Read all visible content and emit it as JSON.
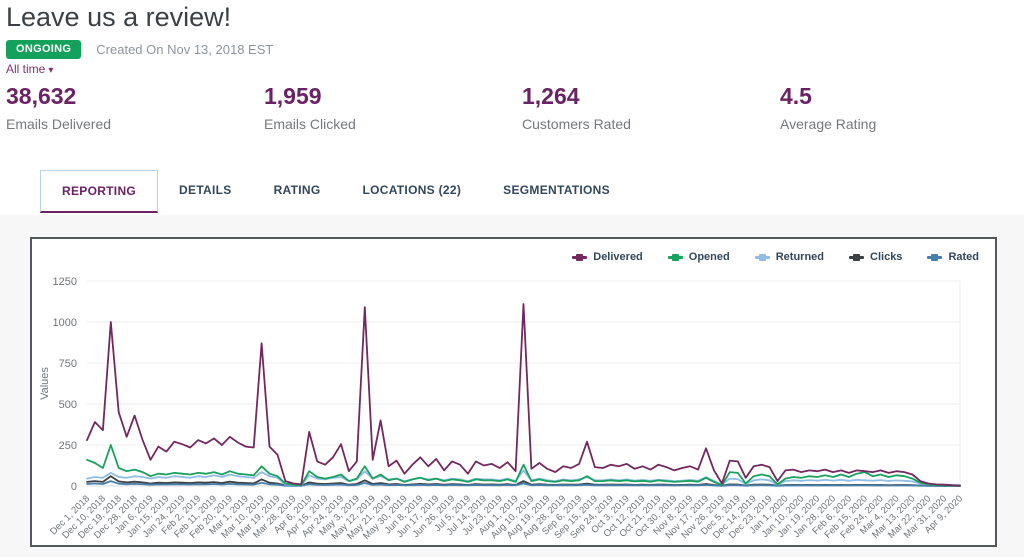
{
  "page": {
    "title": "Leave us a review!",
    "status_badge": "ONGOING",
    "created_text": "Created On Nov 13, 2018 EST",
    "time_filter": "All time",
    "caret": "▾"
  },
  "colors": {
    "accent_purple": "#6b2264",
    "badge_green": "#13a15b",
    "tab_inactive": "#33475b",
    "active_tab_border": "#b6d3ec",
    "panel_bg": "#f7f7f8",
    "card_border": "#54575c",
    "gridline": "#ededed",
    "baseline": "#d7dde2",
    "axis_text": "#70757a"
  },
  "stats": [
    {
      "value": "38,632",
      "label": "Emails Delivered"
    },
    {
      "value": "1,959",
      "label": "Emails Clicked"
    },
    {
      "value": "1,264",
      "label": "Customers Rated"
    },
    {
      "value": "4.5",
      "label": "Average Rating"
    }
  ],
  "tabs": [
    {
      "label": "REPORTING",
      "active": true
    },
    {
      "label": "DETAILS",
      "active": false
    },
    {
      "label": "RATING",
      "active": false
    },
    {
      "label": "LOCATIONS (22)",
      "active": false
    },
    {
      "label": "SEGMENTATIONS",
      "active": false
    }
  ],
  "chart_data": {
    "type": "line",
    "ylabel": "Values",
    "ylim": [
      0,
      1250
    ],
    "yticks": [
      0,
      250,
      500,
      750,
      1000,
      1250
    ],
    "ytick_labels": [
      "0",
      "250",
      "500",
      "750",
      "1000",
      "1250"
    ],
    "grid": true,
    "legend_position": "top-right",
    "x_tick_labels": [
      "Dec 1, 2018",
      "Dec 10, 2018",
      "Dec 19, 2018",
      "Dec 28, 2018",
      "Jan 6, 2019",
      "Jan 15, 2019",
      "Jan 24, 2019",
      "Feb 2, 2019",
      "Feb 11, 2019",
      "Feb 20, 2019",
      "Mar 1, 2019",
      "Mar 10, 2019",
      "Mar 19, 2019",
      "Mar 28, 2019",
      "Apr 6, 2019",
      "Apr 15, 2019",
      "Apr 24, 2019",
      "May 3, 2019",
      "May 12, 2019",
      "May 21, 2019",
      "May 30, 2019",
      "Jun 8, 2019",
      "Jun 17, 2019",
      "Jun 26, 2019",
      "Jul 5, 2019",
      "Jul 14, 2019",
      "Jul 23, 2019",
      "Aug 1, 2019",
      "Aug 10, 2019",
      "Aug 19, 2019",
      "Aug 28, 2019",
      "Sep 6, 2019",
      "Sep 15, 2019",
      "Sep 24, 2019",
      "Oct 3, 2019",
      "Oct 12, 2019",
      "Oct 21, 2019",
      "Oct 30, 2019",
      "Nov 8, 2019",
      "Nov 17, 2019",
      "Nov 26, 2019",
      "Dec 5, 2019",
      "Dec 14, 2019",
      "Dec 23, 2019",
      "Jan 1, 2020",
      "Jan 10, 2020",
      "Jan 19, 2020",
      "Jan 28, 2020",
      "Feb 6, 2020",
      "Feb 15, 2020",
      "Feb 24, 2020",
      "Mar 4, 2020",
      "Mar 13, 2020",
      "Mar 22, 2020",
      "Mar 31, 2020",
      "Apr 9, 2020"
    ],
    "points_per_label_interval": 2,
    "series": [
      {
        "name": "Delivered",
        "color": "#73295f",
        "values": [
          280,
          390,
          340,
          1000,
          450,
          300,
          430,
          280,
          160,
          240,
          210,
          270,
          255,
          235,
          280,
          260,
          290,
          250,
          300,
          265,
          240,
          235,
          870,
          240,
          190,
          30,
          15,
          10,
          330,
          150,
          130,
          175,
          255,
          90,
          150,
          1090,
          160,
          400,
          120,
          155,
          75,
          130,
          175,
          120,
          165,
          95,
          150,
          130,
          75,
          150,
          125,
          135,
          110,
          145,
          90,
          1110,
          105,
          140,
          105,
          85,
          120,
          110,
          135,
          270,
          115,
          110,
          130,
          120,
          135,
          105,
          120,
          100,
          130,
          115,
          95,
          110,
          120,
          100,
          230,
          95,
          15,
          155,
          150,
          50,
          120,
          130,
          115,
          30,
          95,
          100,
          85,
          95,
          90,
          100,
          85,
          95,
          80,
          95,
          90,
          85,
          95,
          80,
          90,
          85,
          70,
          30,
          15,
          10,
          8,
          5,
          3
        ]
      },
      {
        "name": "Opened",
        "color": "#19a15e",
        "values": [
          160,
          140,
          110,
          250,
          110,
          90,
          100,
          85,
          60,
          75,
          70,
          80,
          75,
          70,
          80,
          75,
          85,
          70,
          90,
          75,
          70,
          65,
          120,
          75,
          60,
          15,
          8,
          5,
          90,
          55,
          45,
          55,
          70,
          30,
          45,
          120,
          45,
          70,
          35,
          45,
          25,
          40,
          50,
          35,
          45,
          30,
          40,
          35,
          25,
          40,
          35,
          35,
          30,
          40,
          25,
          130,
          30,
          40,
          30,
          25,
          35,
          30,
          35,
          60,
          30,
          30,
          35,
          30,
          35,
          28,
          32,
          26,
          34,
          30,
          25,
          28,
          32,
          26,
          50,
          25,
          5,
          85,
          80,
          15,
          60,
          70,
          60,
          10,
          45,
          55,
          50,
          60,
          55,
          65,
          55,
          70,
          55,
          75,
          85,
          60,
          70,
          55,
          65,
          60,
          45,
          20,
          10,
          6,
          4,
          3,
          2
        ]
      },
      {
        "name": "Returned",
        "color": "#8fbde6",
        "values": [
          45,
          55,
          50,
          80,
          55,
          50,
          60,
          55,
          45,
          55,
          50,
          60,
          55,
          50,
          60,
          55,
          65,
          55,
          70,
          60,
          55,
          50,
          85,
          60,
          50,
          10,
          5,
          4,
          65,
          45,
          40,
          50,
          55,
          30,
          40,
          90,
          45,
          60,
          40,
          45,
          30,
          40,
          50,
          40,
          45,
          35,
          45,
          40,
          30,
          45,
          40,
          40,
          35,
          45,
          30,
          95,
          35,
          45,
          35,
          30,
          40,
          35,
          40,
          55,
          35,
          35,
          40,
          35,
          40,
          33,
          37,
          32,
          38,
          35,
          30,
          33,
          37,
          32,
          55,
          30,
          8,
          45,
          42,
          12,
          35,
          40,
          35,
          8,
          30,
          35,
          32,
          36,
          33,
          38,
          33,
          38,
          32,
          38,
          35,
          33,
          36,
          31,
          34,
          32,
          28,
          15,
          10,
          8,
          6,
          5,
          4
        ]
      },
      {
        "name": "Clicks",
        "color": "#3c4043",
        "values": [
          25,
          30,
          25,
          60,
          28,
          22,
          26,
          22,
          15,
          20,
          18,
          22,
          20,
          18,
          22,
          20,
          24,
          18,
          26,
          20,
          18,
          16,
          40,
          20,
          15,
          4,
          2,
          2,
          22,
          14,
          12,
          15,
          18,
          8,
          12,
          35,
          12,
          18,
          10,
          12,
          7,
          10,
          13,
          10,
          12,
          8,
          11,
          10,
          7,
          11,
          9,
          10,
          8,
          11,
          7,
          30,
          8,
          11,
          8,
          7,
          9,
          8,
          9,
          14,
          8,
          8,
          9,
          8,
          9,
          7,
          8,
          7,
          9,
          8,
          6,
          7,
          8,
          7,
          12,
          6,
          2,
          10,
          9,
          3,
          8,
          9,
          8,
          2,
          6,
          7,
          6,
          7,
          6,
          7,
          6,
          7,
          6,
          7,
          7,
          6,
          7,
          5,
          6,
          6,
          5,
          3,
          2,
          1,
          1,
          1,
          0
        ]
      },
      {
        "name": "Rated",
        "color": "#477fab",
        "values": [
          12,
          15,
          12,
          30,
          14,
          11,
          13,
          11,
          8,
          10,
          9,
          11,
          10,
          9,
          11,
          10,
          12,
          9,
          13,
          10,
          9,
          8,
          20,
          10,
          8,
          2,
          1,
          1,
          11,
          7,
          6,
          8,
          9,
          4,
          6,
          18,
          6,
          9,
          5,
          6,
          4,
          5,
          7,
          5,
          6,
          4,
          6,
          5,
          4,
          6,
          5,
          5,
          4,
          6,
          4,
          15,
          4,
          6,
          4,
          4,
          5,
          4,
          5,
          7,
          4,
          4,
          5,
          4,
          5,
          4,
          4,
          4,
          5,
          4,
          3,
          4,
          4,
          4,
          6,
          3,
          1,
          5,
          5,
          2,
          4,
          5,
          4,
          1,
          3,
          4,
          3,
          4,
          3,
          4,
          3,
          4,
          3,
          4,
          4,
          3,
          4,
          3,
          3,
          3,
          3,
          2,
          1,
          1,
          0,
          0,
          0
        ]
      }
    ]
  }
}
